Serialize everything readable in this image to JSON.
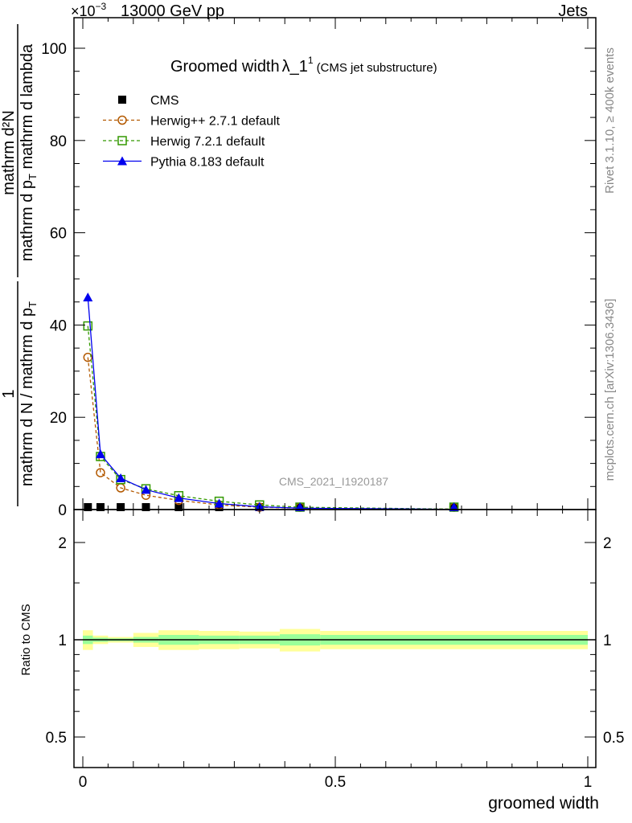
{
  "header": {
    "energy": "13000 GeV pp",
    "scale": "×10",
    "scale_exp": "−3",
    "category": "Jets"
  },
  "side": {
    "rivet": "Rivet 3.1.10, ≥ 400k events",
    "mcplots": "mcplots.cern.ch [arXiv:1306.3436]"
  },
  "watermark": "CMS_2021_I1920187",
  "chart_data": [
    {
      "type": "line",
      "title": "Groomed width",
      "title_symbol": "λ_1",
      "title_sup": "1",
      "title_note": "(CMS jet substructure)",
      "ylabel_parts": {
        "num1": "1",
        "den1": "mathrm d N / mathrm d p",
        "num2": "mathrm d²N",
        "den2": "mathrm d p",
        "den2b": " mathrm d lambda",
        "sub": "T"
      },
      "xlim": [
        0,
        1
      ],
      "ylim": [
        0,
        100
      ],
      "yticks": [
        "0",
        "20",
        "40",
        "60",
        "80",
        "100"
      ],
      "x": [
        0.01,
        0.035,
        0.075,
        0.125,
        0.19,
        0.27,
        0.35,
        0.43,
        0.735
      ],
      "series": [
        {
          "name": "CMS",
          "color": "#000000",
          "marker": "square",
          "values": [
            0.1,
            0.1,
            0.1,
            0.1,
            0.1,
            0.1,
            0.1,
            0.1,
            0.1
          ]
        },
        {
          "name": "Herwig++ 2.7.1 default",
          "color": "#b35900",
          "marker": "circle",
          "dash": true,
          "values": [
            33,
            8,
            4.7,
            3.1,
            2.0,
            1.0,
            0.5,
            0.3,
            0.1
          ]
        },
        {
          "name": "Herwig 7.2.1 default",
          "color": "#339900",
          "marker": "square-open",
          "dash": true,
          "values": [
            39.8,
            11.5,
            6.5,
            4.5,
            3.0,
            1.8,
            1.0,
            0.5,
            0.1
          ]
        },
        {
          "name": "Pythia 8.183 default",
          "color": "#0000ee",
          "marker": "triangle",
          "dash": false,
          "values": [
            46,
            12,
            6.8,
            4.3,
            2.5,
            1.3,
            0.6,
            0.3,
            0.05
          ]
        }
      ],
      "legend_position": "top-left"
    },
    {
      "type": "area",
      "ylabel": "Ratio to CMS",
      "xlabel": "groomed width",
      "xticks": [
        "0",
        "0.5",
        "1"
      ],
      "yticks": [
        "0.5",
        "1",
        "2"
      ],
      "ylim": [
        0.4,
        2.4
      ],
      "bin_edges": [
        0,
        0.02,
        0.05,
        0.1,
        0.15,
        0.23,
        0.31,
        0.39,
        0.47,
        1.0
      ],
      "band_stat_syst": [
        0.07,
        0.03,
        0.02,
        0.05,
        0.07,
        0.065,
        0.06,
        0.08,
        0.065
      ],
      "band_stat": [
        0.03,
        0.015,
        0.01,
        0.02,
        0.035,
        0.03,
        0.03,
        0.04,
        0.035
      ],
      "band_colors": {
        "total": "#ffff99",
        "stat": "#99ff99"
      }
    }
  ]
}
